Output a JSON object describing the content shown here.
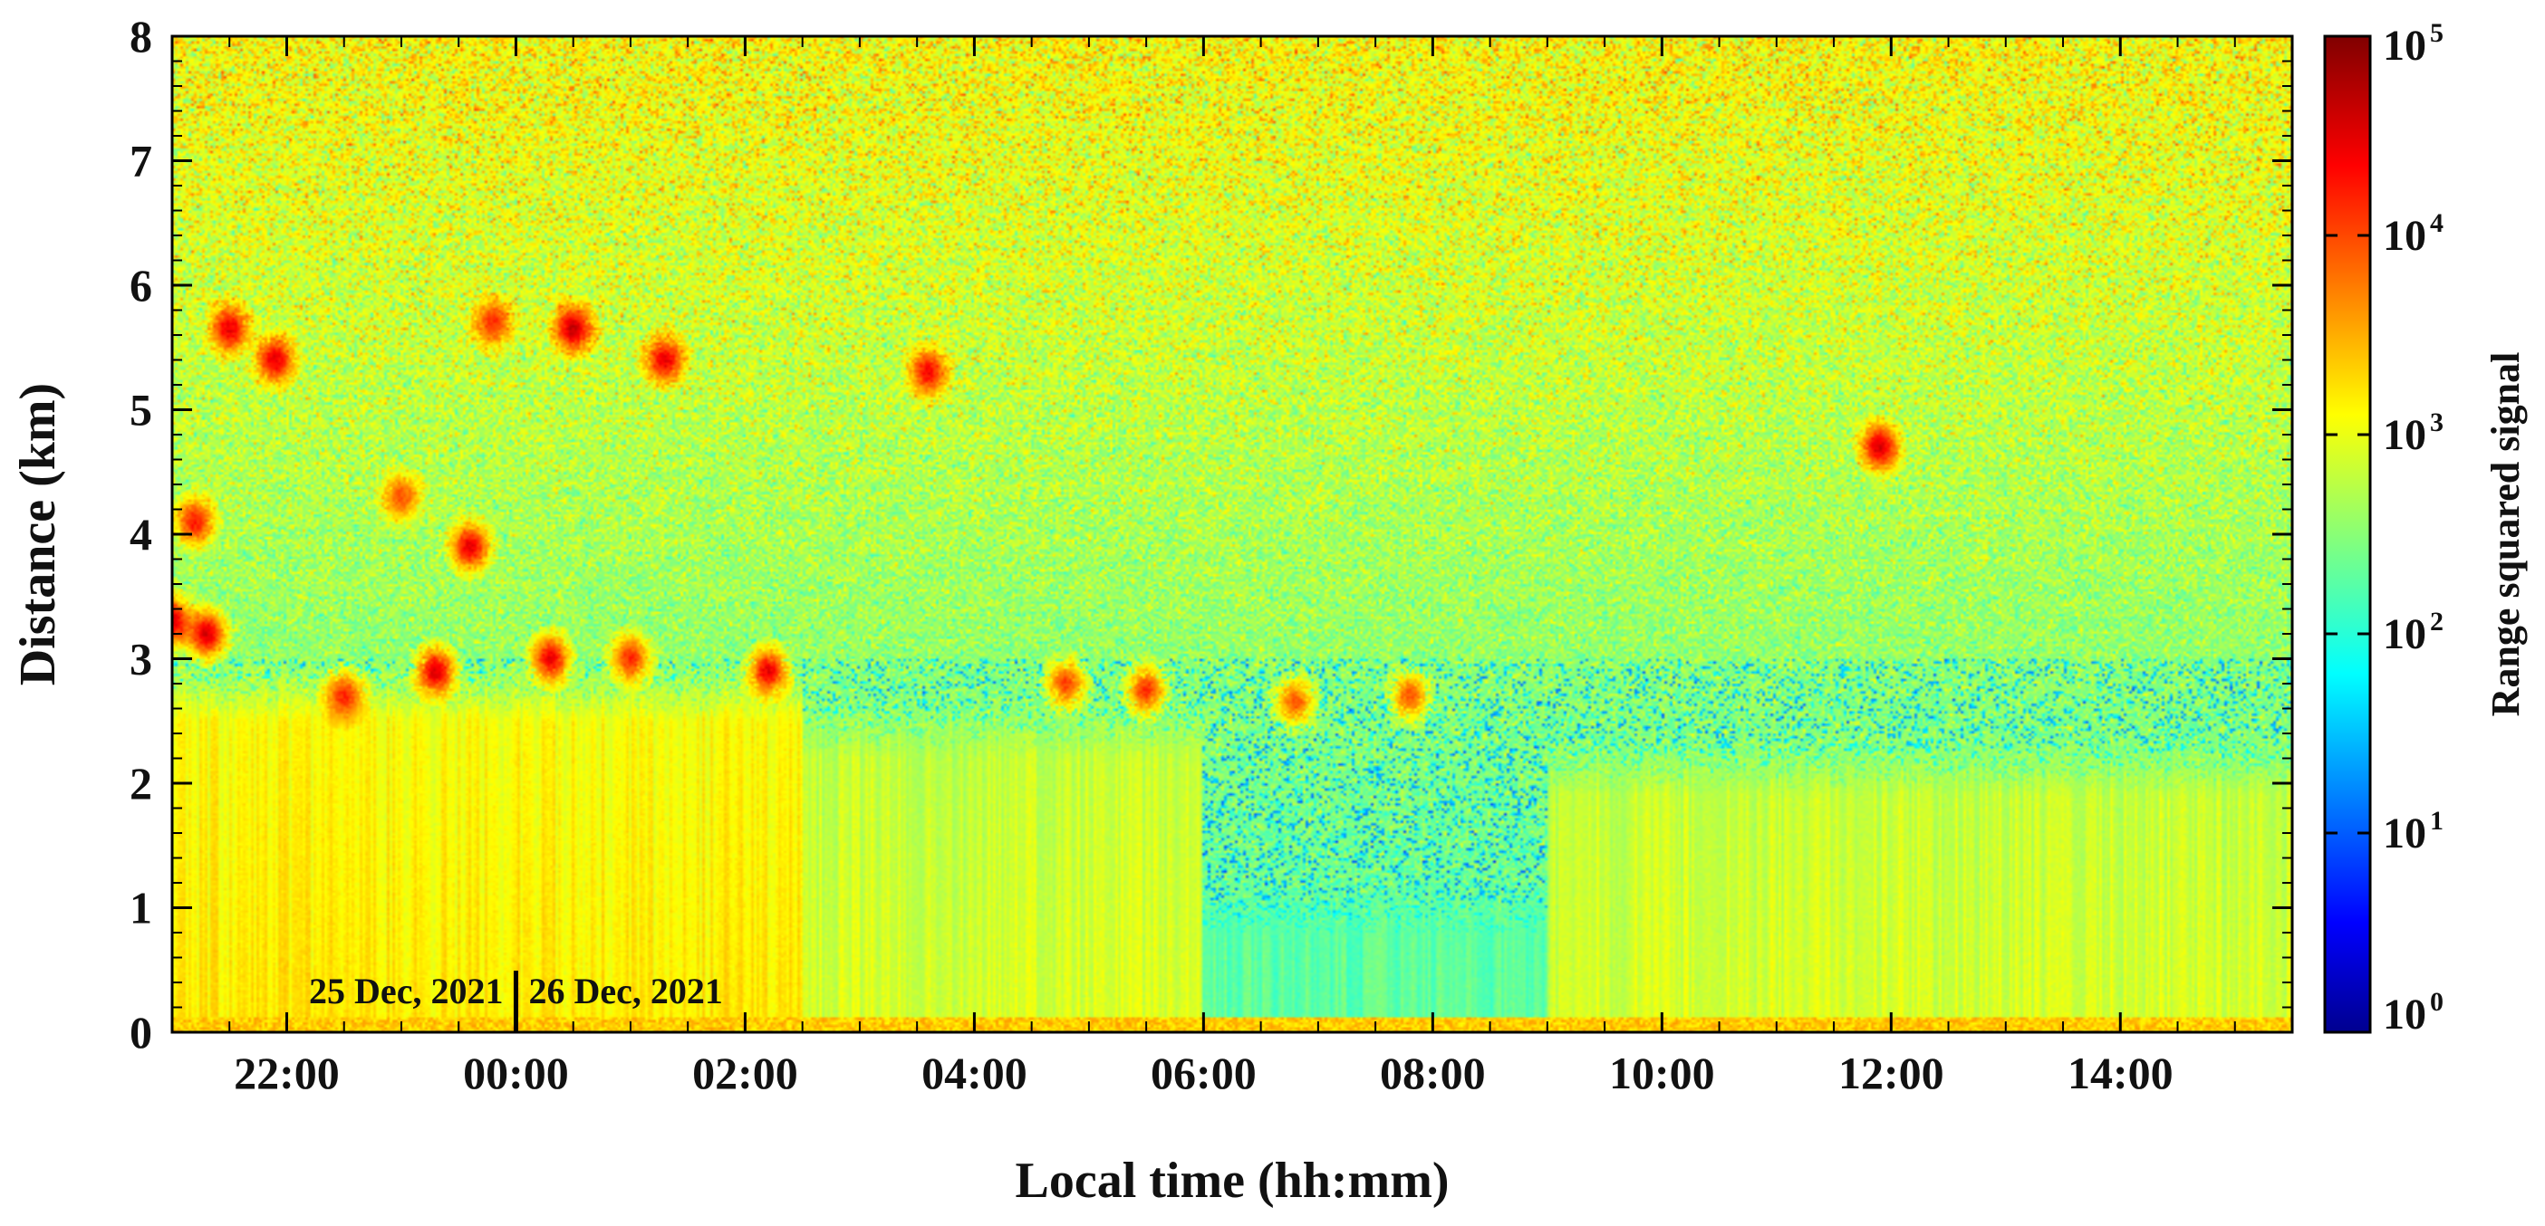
{
  "chart_data": {
    "type": "heatmap",
    "title": "",
    "xlabel": "Local time (hh:mm)",
    "ylabel": "Distance (km)",
    "x_range_hours": [
      21.0,
      39.5
    ],
    "x_ticks": [
      {
        "hour": 22,
        "label": "22:00"
      },
      {
        "hour": 24,
        "label": "00:00"
      },
      {
        "hour": 26,
        "label": "02:00"
      },
      {
        "hour": 28,
        "label": "04:00"
      },
      {
        "hour": 30,
        "label": "06:00"
      },
      {
        "hour": 32,
        "label": "08:00"
      },
      {
        "hour": 34,
        "label": "10:00"
      },
      {
        "hour": 36,
        "label": "12:00"
      },
      {
        "hour": 38,
        "label": "14:00"
      }
    ],
    "ylim": [
      0,
      8
    ],
    "y_ticks": [
      0,
      1,
      2,
      3,
      4,
      5,
      6,
      7,
      8
    ],
    "colorbar": {
      "label": "Range squared signal",
      "scale": "log",
      "range": [
        1,
        100000
      ],
      "tick_base": "10",
      "tick_exponents": [
        "0",
        "1",
        "2",
        "3",
        "4",
        "5"
      ],
      "colormap": "jet",
      "colors": [
        "#00008f",
        "#0000ff",
        "#00ffff",
        "#ffff00",
        "#ff0000",
        "#800000"
      ]
    },
    "annotations": {
      "date_left": "25 Dec, 2021",
      "date_right": "26 Dec, 2021",
      "separator_hour": 24
    },
    "features": [
      {
        "type": "aerosol_layer",
        "hours": [
          21.0,
          26.5
        ],
        "top_km": 3.0,
        "level": 3.2
      },
      {
        "type": "aerosol_layer",
        "hours": [
          26.5,
          30.0
        ],
        "top_km": 2.7,
        "level": 2.9
      },
      {
        "type": "aerosol_layer",
        "hours": [
          30.0,
          33.0
        ],
        "top_km": 1.2,
        "level": 2.3
      },
      {
        "type": "aerosol_layer",
        "hours": [
          33.0,
          39.5
        ],
        "top_km": 2.4,
        "level": 2.9
      },
      {
        "type": "cloud",
        "hour": 21.0,
        "km": 3.3,
        "level": 4.6
      },
      {
        "type": "cloud",
        "hour": 21.2,
        "km": 4.1,
        "level": 4.3
      },
      {
        "type": "cloud",
        "hour": 21.3,
        "km": 3.2,
        "level": 4.6
      },
      {
        "type": "cloud",
        "hour": 21.5,
        "km": 5.65,
        "level": 4.5
      },
      {
        "type": "cloud",
        "hour": 21.9,
        "km": 5.4,
        "level": 4.5
      },
      {
        "type": "cloud",
        "hour": 22.5,
        "km": 2.7,
        "level": 4.2
      },
      {
        "type": "cloud",
        "hour": 23.0,
        "km": 4.3,
        "level": 4.0
      },
      {
        "type": "cloud",
        "hour": 23.3,
        "km": 2.9,
        "level": 4.6
      },
      {
        "type": "cloud",
        "hour": 23.6,
        "km": 3.9,
        "level": 4.5
      },
      {
        "type": "cloud",
        "hour": 23.8,
        "km": 5.7,
        "level": 4.2
      },
      {
        "type": "cloud",
        "hour": 24.3,
        "km": 3.0,
        "level": 4.5
      },
      {
        "type": "cloud",
        "hour": 24.5,
        "km": 5.65,
        "level": 4.7
      },
      {
        "type": "cloud",
        "hour": 25.0,
        "km": 3.0,
        "level": 4.2
      },
      {
        "type": "cloud",
        "hour": 25.3,
        "km": 5.4,
        "level": 4.5
      },
      {
        "type": "cloud",
        "hour": 26.2,
        "km": 2.9,
        "level": 4.5
      },
      {
        "type": "cloud",
        "hour": 27.6,
        "km": 5.3,
        "level": 4.4
      },
      {
        "type": "cloud",
        "hour": 28.8,
        "km": 2.8,
        "level": 4.1
      },
      {
        "type": "cloud",
        "hour": 29.5,
        "km": 2.75,
        "level": 4.2
      },
      {
        "type": "cloud",
        "hour": 30.8,
        "km": 2.65,
        "level": 4.0
      },
      {
        "type": "cloud",
        "hour": 31.8,
        "km": 2.7,
        "level": 4.0
      },
      {
        "type": "cloud",
        "hour": 35.9,
        "km": 4.7,
        "level": 4.6
      }
    ]
  }
}
